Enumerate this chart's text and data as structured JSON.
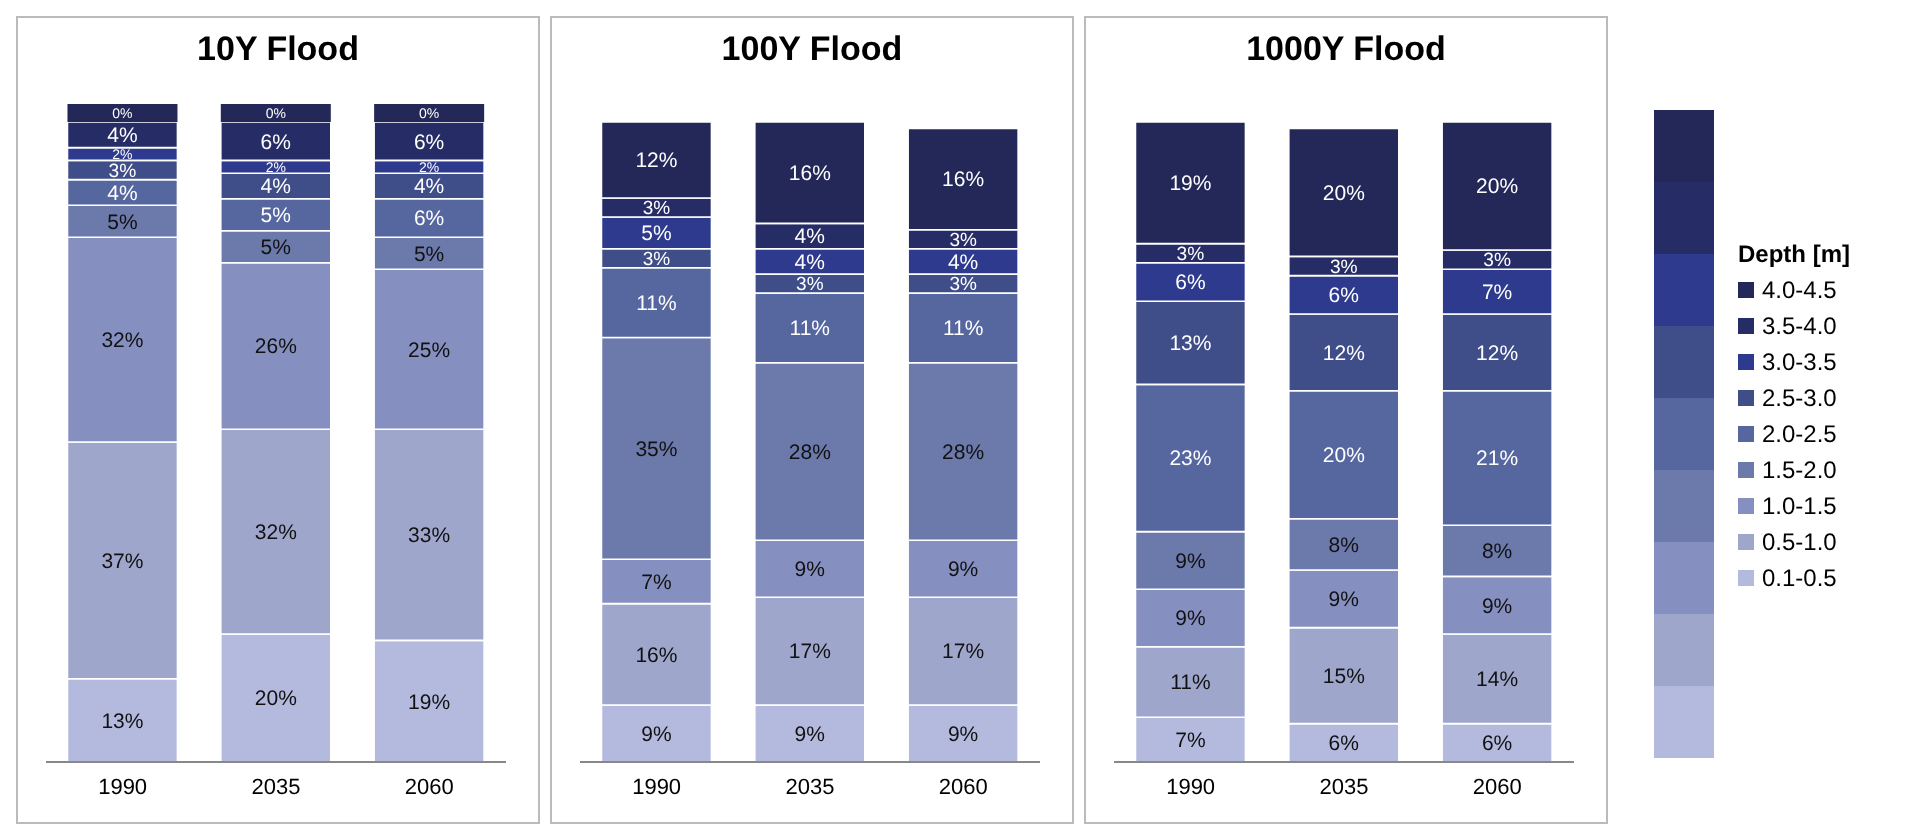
{
  "chart_data": [
    {
      "type": "bar",
      "title": "10Y Flood",
      "categories": [
        "1990",
        "2035",
        "2060"
      ],
      "stacked": true,
      "legend": false,
      "series": [
        {
          "color": "#b4bade",
          "values": [
            13,
            20,
            19
          ],
          "value_labels": [
            "13%",
            "20%",
            "19%"
          ]
        },
        {
          "color": "#9ea6cc",
          "values": [
            37,
            32,
            33
          ],
          "value_labels": [
            "37%",
            "32%",
            "33%"
          ]
        },
        {
          "color": "#8690c0",
          "values": [
            32,
            26,
            25
          ],
          "value_labels": [
            "32%",
            "26%",
            "25%"
          ]
        },
        {
          "color": "#6b79ab",
          "values": [
            5,
            5,
            5
          ],
          "value_labels": [
            "5%",
            "5%",
            "5%"
          ]
        },
        {
          "color": "#56669f",
          "values": [
            4,
            5,
            6
          ],
          "value_labels": [
            "4%",
            "5%",
            "6%"
          ]
        },
        {
          "color": "#3f4d88",
          "values": [
            3,
            4,
            4
          ],
          "value_labels": [
            "3%",
            "4%",
            "4%"
          ]
        },
        {
          "color": "#2e3a8e",
          "values": [
            2,
            2,
            2
          ],
          "value_labels": [
            "2%",
            "2%",
            "2%"
          ]
        },
        {
          "color": "#262d66",
          "values": [
            4,
            6,
            6
          ],
          "value_labels": [
            "4%",
            "6%",
            "6%"
          ]
        },
        {
          "color": "#232858",
          "values": [
            0,
            0,
            0
          ],
          "value_labels": [
            "0%",
            "0%",
            "0%"
          ]
        }
      ]
    },
    {
      "type": "bar",
      "title": "100Y Flood",
      "categories": [
        "1990",
        "2035",
        "2060"
      ],
      "stacked": true,
      "legend": false,
      "series": [
        {
          "color": "#b4bade",
          "values": [
            9,
            9,
            9
          ],
          "value_labels": [
            "9%",
            "9%",
            "9%"
          ]
        },
        {
          "color": "#9ea6cc",
          "values": [
            16,
            17,
            17
          ],
          "value_labels": [
            "16%",
            "17%",
            "17%"
          ]
        },
        {
          "color": "#8690c0",
          "values": [
            7,
            9,
            9
          ],
          "value_labels": [
            "7%",
            "9%",
            "9%"
          ]
        },
        {
          "color": "#6b79ab",
          "values": [
            35,
            28,
            28
          ],
          "value_labels": [
            "35%",
            "28%",
            "28%"
          ]
        },
        {
          "color": "#56669f",
          "values": [
            11,
            11,
            11
          ],
          "value_labels": [
            "11%",
            "11%",
            "11%"
          ]
        },
        {
          "color": "#3f4d88",
          "values": [
            3,
            3,
            3
          ],
          "value_labels": [
            "3%",
            "3%",
            "3%"
          ]
        },
        {
          "color": "#2e3a8e",
          "values": [
            5,
            4,
            4
          ],
          "value_labels": [
            "5%",
            "4%",
            "4%"
          ]
        },
        {
          "color": "#262d66",
          "values": [
            3,
            4,
            3
          ],
          "value_labels": [
            "3%",
            "4%",
            "3%"
          ]
        },
        {
          "color": "#232858",
          "values": [
            12,
            16,
            16
          ],
          "value_labels": [
            "12%",
            "16%",
            "16%"
          ]
        }
      ]
    },
    {
      "type": "bar",
      "title": "1000Y Flood",
      "categories": [
        "1990",
        "2035",
        "2060"
      ],
      "stacked": true,
      "legend": "right",
      "legend_title": "Depth [m]",
      "series": [
        {
          "name": "0.1-0.5",
          "color": "#b4bade",
          "values": [
            7,
            6,
            6
          ],
          "value_labels": [
            "7%",
            "6%",
            "6%"
          ]
        },
        {
          "name": "0.5-1.0",
          "color": "#9ea6cc",
          "values": [
            11,
            15,
            14
          ],
          "value_labels": [
            "11%",
            "15%",
            "14%"
          ]
        },
        {
          "name": "1.0-1.5",
          "color": "#8690c0",
          "values": [
            9,
            9,
            9
          ],
          "value_labels": [
            "9%",
            "9%",
            "9%"
          ]
        },
        {
          "name": "1.5-2.0",
          "color": "#6b79ab",
          "values": [
            9,
            8,
            8
          ],
          "value_labels": [
            "9%",
            "8%",
            "8%"
          ]
        },
        {
          "name": "2.0-2.5",
          "color": "#56669f",
          "values": [
            23,
            20,
            21
          ],
          "value_labels": [
            "23%",
            "20%",
            "21%"
          ]
        },
        {
          "name": "2.5-3.0",
          "color": "#3f4d88",
          "values": [
            13,
            12,
            12
          ],
          "value_labels": [
            "13%",
            "12%",
            "12%"
          ]
        },
        {
          "name": "3.0-3.5",
          "color": "#2e3a8e",
          "values": [
            6,
            6,
            7
          ],
          "value_labels": [
            "6%",
            "6%",
            "7%"
          ]
        },
        {
          "name": "3.5-4.0",
          "color": "#262d66",
          "values": [
            3,
            3,
            3
          ],
          "value_labels": [
            "3%",
            "3%",
            "3%"
          ]
        },
        {
          "name": "4.0-4.5",
          "color": "#232858",
          "values": [
            19,
            20,
            20
          ],
          "value_labels": [
            "19%",
            "20%",
            "20%"
          ]
        }
      ]
    }
  ]
}
